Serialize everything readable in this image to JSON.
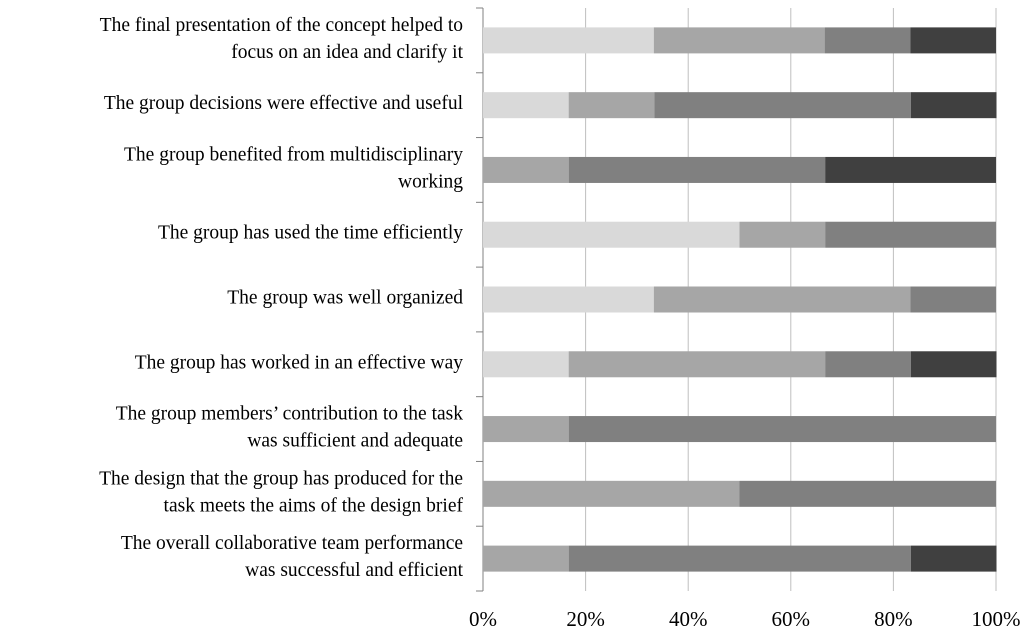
{
  "chart_data": {
    "type": "stacked-bar-horizontal",
    "categories": [
      [
        "The final presentation of the concept helped to",
        "focus on an idea and clarify it"
      ],
      [
        "The group decisions were effective and useful"
      ],
      [
        "The group benefited from multidisciplinary",
        "working"
      ],
      [
        "The group has used the time efficiently"
      ],
      [
        "The group was well organized"
      ],
      [
        "The group has worked in an effective way"
      ],
      [
        "The group members’ contribution to the task",
        "was sufficient and adequate"
      ],
      [
        "The design that the group has produced for the",
        "task meets the aims of the design brief"
      ],
      [
        "The overall collaborative team performance",
        "was successful and efficient"
      ]
    ],
    "series": [
      {
        "color": "#d9d9d9",
        "values": [
          33.3,
          16.7,
          0,
          50,
          33.3,
          16.7,
          0,
          0,
          0
        ]
      },
      {
        "color": "#a6a6a6",
        "values": [
          33.3,
          16.7,
          16.7,
          16.7,
          50,
          50,
          16.7,
          50,
          16.7
        ]
      },
      {
        "color": "#808080",
        "values": [
          16.7,
          50,
          50,
          33.3,
          16.7,
          16.7,
          83.3,
          50,
          66.7
        ]
      },
      {
        "color": "#404040",
        "values": [
          16.7,
          16.7,
          33.3,
          0,
          0,
          16.7,
          0,
          0,
          16.7
        ]
      }
    ],
    "xlim": [
      0,
      100
    ],
    "xticks": [
      {
        "value": 0,
        "label": "0%"
      },
      {
        "value": 20,
        "label": "20%"
      },
      {
        "value": 40,
        "label": "40%"
      },
      {
        "value": 60,
        "label": "60%"
      },
      {
        "value": 80,
        "label": "80%"
      },
      {
        "value": 100,
        "label": "100%"
      }
    ],
    "grid": true
  }
}
